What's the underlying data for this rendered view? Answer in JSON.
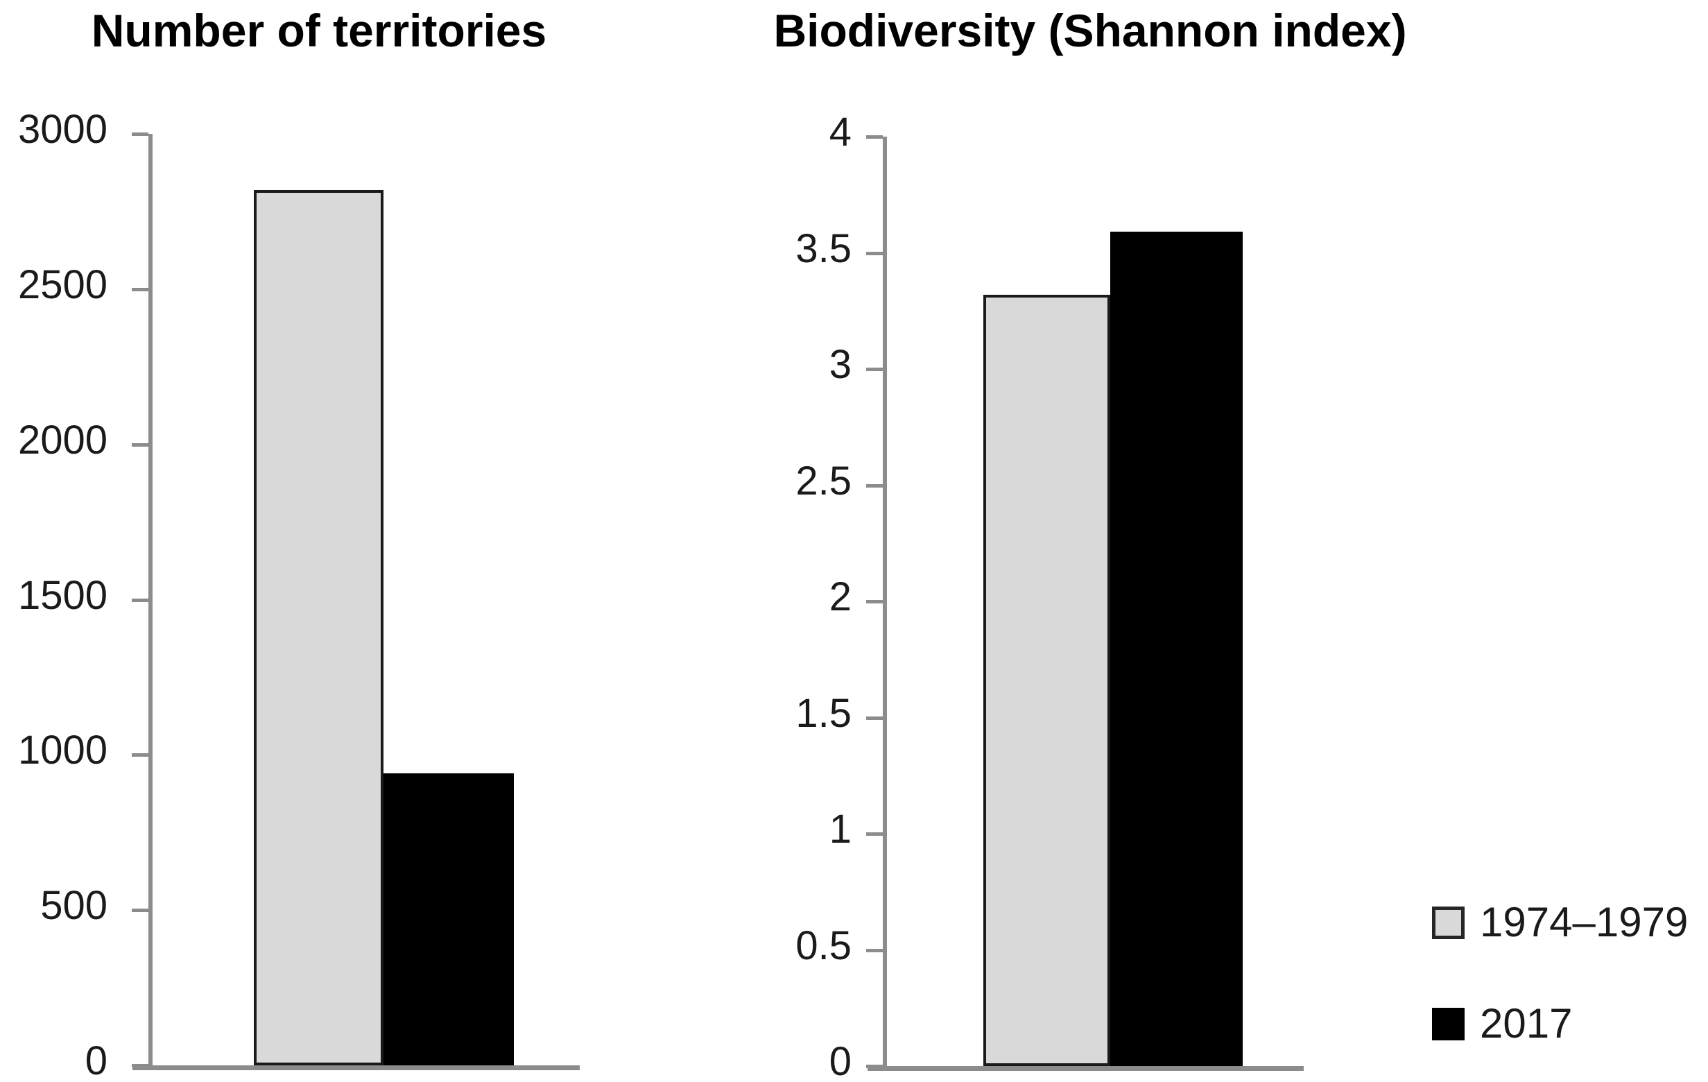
{
  "page": {
    "background": "#ffffff",
    "text_color": "#000000",
    "axis_color": "#8c8c8c"
  },
  "chart_data": [
    {
      "type": "bar",
      "title": "Number of territories",
      "categories": [
        "1974–1979",
        "2017"
      ],
      "series": [
        {
          "name": "1974–1979",
          "value": 2820,
          "fill": "#d9d9d9",
          "border": "#1a1a1a"
        },
        {
          "name": "2017",
          "value": 940,
          "fill": "#000000",
          "border": "#000000"
        }
      ],
      "xlabel": "",
      "ylabel": "",
      "ylim": [
        0,
        3000
      ],
      "ytick_values": [
        0,
        500,
        1000,
        1500,
        2000,
        2500,
        3000
      ],
      "ytick_labels": [
        "0",
        "500",
        "1000",
        "1500",
        "2000",
        "2500",
        "3000"
      ],
      "grid": false,
      "legend_position": "shared-bottom-right"
    },
    {
      "type": "bar",
      "title": "Biodiversity (Shannon index)",
      "categories": [
        "1974–1979",
        "2017"
      ],
      "series": [
        {
          "name": "1974–1979",
          "value": 3.32,
          "fill": "#d9d9d9",
          "border": "#1a1a1a"
        },
        {
          "name": "2017",
          "value": 3.59,
          "fill": "#000000",
          "border": "#000000"
        }
      ],
      "xlabel": "",
      "ylabel": "",
      "ylim": [
        0,
        4
      ],
      "ytick_values": [
        0,
        0.5,
        1,
        1.5,
        2,
        2.5,
        3,
        3.5,
        4
      ],
      "ytick_labels": [
        "0",
        "0.5",
        "1",
        "1.5",
        "2",
        "2.5",
        "3",
        "3.5",
        "4"
      ],
      "grid": false,
      "legend_position": "shared-bottom-right"
    }
  ],
  "legend": {
    "items": [
      {
        "label": "1974–1979",
        "swatch_fill": "#d9d9d9",
        "swatch_border": "#262626"
      },
      {
        "label": "2017",
        "swatch_fill": "#000000",
        "swatch_border": "#000000"
      }
    ]
  }
}
